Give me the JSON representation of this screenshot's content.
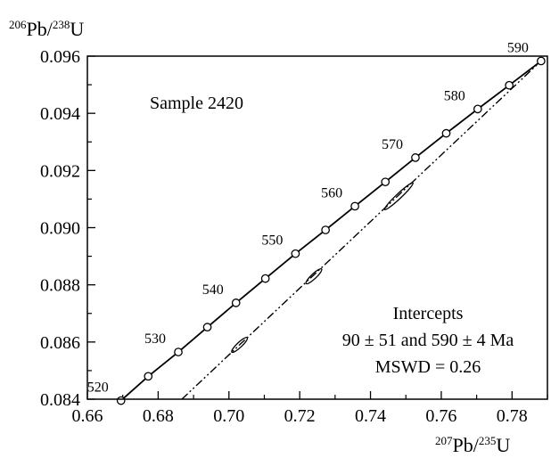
{
  "chart_data": {
    "type": "scatter",
    "title": "",
    "xlabel": {
      "iso_top": "207",
      "elem_top": "Pb/",
      "iso_bot": "235",
      "elem_bot": "U"
    },
    "ylabel": {
      "iso_top": "206",
      "elem_top": "Pb/",
      "iso_bot": "238",
      "elem_bot": "U"
    },
    "xlim": [
      0.66,
      0.79
    ],
    "ylim": [
      0.084,
      0.096
    ],
    "x_ticks": [
      "0.66",
      "0.68",
      "0.70",
      "0.72",
      "0.74",
      "0.76",
      "0.78"
    ],
    "y_ticks": [
      "0.084",
      "0.086",
      "0.088",
      "0.090",
      "0.092",
      "0.094",
      "0.096"
    ],
    "sample_label": "Sample 2420",
    "concordia": {
      "ages_ma": [
        520,
        525,
        530,
        535,
        540,
        545,
        550,
        555,
        560,
        565,
        570,
        575,
        580,
        585,
        590
      ],
      "x": [
        0.6695,
        0.6772,
        0.6857,
        0.6939,
        0.702,
        0.7103,
        0.7188,
        0.7273,
        0.7356,
        0.7442,
        0.7527,
        0.7614,
        0.7703,
        0.7792,
        0.7882
      ],
      "y": [
        0.08395,
        0.0848,
        0.08565,
        0.08652,
        0.08737,
        0.08822,
        0.08909,
        0.08992,
        0.09075,
        0.0916,
        0.09245,
        0.0933,
        0.09415,
        0.09498,
        0.09583
      ],
      "labels": [
        {
          "text": "520",
          "x": 0.6695,
          "y": 0.08395
        },
        {
          "text": "530",
          "x": 0.6857,
          "y": 0.08565
        },
        {
          "text": "540",
          "x": 0.702,
          "y": 0.08737
        },
        {
          "text": "550",
          "x": 0.7188,
          "y": 0.08909
        },
        {
          "text": "560",
          "x": 0.7356,
          "y": 0.09075
        },
        {
          "text": "570",
          "x": 0.7527,
          "y": 0.09245
        },
        {
          "text": "580",
          "x": 0.7703,
          "y": 0.09415
        },
        {
          "text": "590",
          "x": 0.7882,
          "y": 0.09583
        }
      ]
    },
    "discordia": {
      "x": [
        0.6867,
        0.7882
      ],
      "y": [
        0.084,
        0.09583
      ]
    },
    "ellipses": [
      {
        "cx": 0.703,
        "cy": 0.0859,
        "rx": 0.003,
        "ry": 0.00025
      },
      {
        "cx": 0.724,
        "cy": 0.0883,
        "rx": 0.003,
        "ry": 0.00023
      },
      {
        "cx": 0.748,
        "cy": 0.0911,
        "rx": 0.0055,
        "ry": 0.00035
      }
    ],
    "annotations": [
      "Intercepts",
      "90 ± 51 and 590 ± 4 Ma",
      "MSWD = 0.26"
    ]
  }
}
